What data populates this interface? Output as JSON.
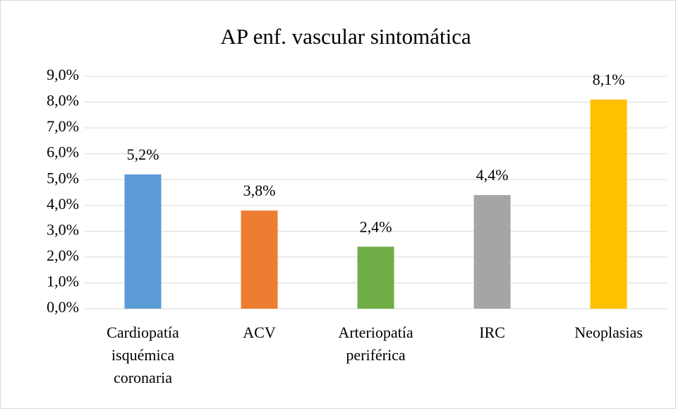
{
  "chart_data": {
    "type": "bar",
    "title": "AP enf. vascular sintomática",
    "categories": [
      "Cardiopatía isquémica coronaria",
      "ACV",
      "Arteriopatía periférica",
      "IRC",
      "Neoplasias"
    ],
    "values": [
      5.2,
      3.8,
      2.4,
      4.4,
      8.1
    ],
    "value_labels": [
      "5,2%",
      "3,8%",
      "2,4%",
      "4,4%",
      "8,1%"
    ],
    "colors": [
      "#5b9bd5",
      "#ed7d31",
      "#70ad47",
      "#a5a5a5",
      "#ffc000"
    ],
    "ylim": [
      0,
      9
    ],
    "yticks": [
      {
        "value": 0,
        "label": "0,0%"
      },
      {
        "value": 1,
        "label": "1,0%"
      },
      {
        "value": 2,
        "label": "2,0%"
      },
      {
        "value": 3,
        "label": "3,0%"
      },
      {
        "value": 4,
        "label": "4,0%"
      },
      {
        "value": 5,
        "label": "5,0%"
      },
      {
        "value": 6,
        "label": "6,0%"
      },
      {
        "value": 7,
        "label": "7,0%"
      },
      {
        "value": 8,
        "label": "8,0%"
      },
      {
        "value": 9,
        "label": "9,0%"
      }
    ],
    "grid": true
  }
}
